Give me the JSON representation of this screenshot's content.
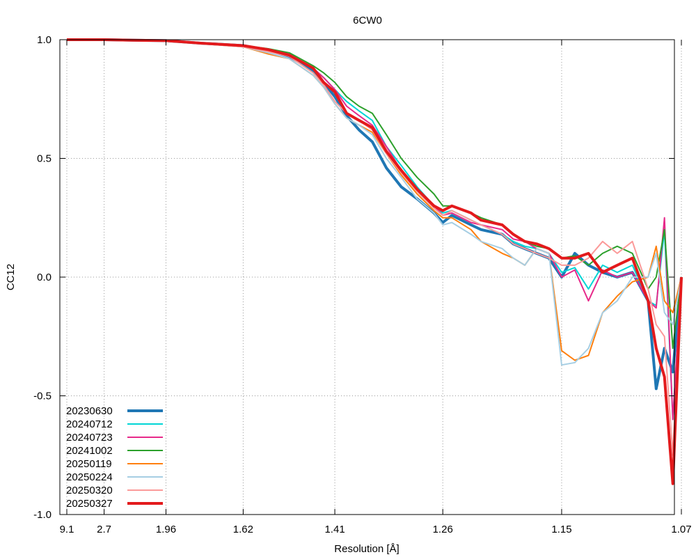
{
  "chart_data": {
    "type": "line",
    "title": "6CW0",
    "xlabel": "Resolution [Å]",
    "ylabel": "CC12",
    "ylim": [
      -1.0,
      1.0
    ],
    "grid": true,
    "legend_position": "bottom-left",
    "x_scale": "inverse-cube of resolution (1/d^3)",
    "x_ticks": [
      "9.1",
      "2.7",
      "1.96",
      "1.62",
      "1.41",
      "1.26",
      "1.15",
      "1.07"
    ],
    "y_ticks": [
      "1.0",
      "0.5",
      "0.0",
      "-0.5",
      "-1.0"
    ],
    "x_resolution": [
      9.1,
      3.5,
      2.7,
      2.25,
      1.96,
      1.77,
      1.62,
      1.55,
      1.5,
      1.45,
      1.43,
      1.41,
      1.39,
      1.37,
      1.35,
      1.33,
      1.31,
      1.29,
      1.27,
      1.26,
      1.25,
      1.23,
      1.22,
      1.2,
      1.19,
      1.18,
      1.17,
      1.16,
      1.15,
      1.14,
      1.13,
      1.12,
      1.11,
      1.1,
      1.09,
      1.085,
      1.08,
      1.075,
      1.07
    ],
    "series": [
      {
        "name": "20230630",
        "color": "#1f77b4",
        "width": 4,
        "values": [
          1.0,
          1.0,
          1.0,
          0.998,
          0.996,
          0.985,
          0.975,
          0.955,
          0.93,
          0.87,
          0.82,
          0.76,
          0.68,
          0.62,
          0.57,
          0.46,
          0.38,
          0.33,
          0.27,
          0.23,
          0.26,
          0.22,
          0.2,
          0.18,
          0.14,
          0.12,
          0.1,
          0.08,
          0.0,
          0.1,
          0.05,
          0.02,
          0.0,
          0.02,
          -0.1,
          -0.47,
          -0.3,
          -0.4,
          0.0
        ]
      },
      {
        "name": "20240712",
        "color": "#00d5d5",
        "width": 2,
        "values": [
          1.0,
          1.0,
          1.0,
          0.998,
          0.996,
          0.985,
          0.975,
          0.96,
          0.94,
          0.88,
          0.84,
          0.79,
          0.74,
          0.7,
          0.66,
          0.55,
          0.47,
          0.38,
          0.3,
          0.27,
          0.28,
          0.24,
          0.22,
          0.18,
          0.15,
          0.13,
          0.12,
          0.1,
          0.02,
          0.04,
          -0.05,
          0.05,
          0.02,
          0.05,
          -0.1,
          -0.12,
          0.2,
          -0.6,
          0.0
        ]
      },
      {
        "name": "20240723",
        "color": "#e7298a",
        "width": 2,
        "values": [
          1.0,
          1.0,
          1.0,
          0.998,
          0.996,
          0.985,
          0.975,
          0.96,
          0.94,
          0.88,
          0.84,
          0.79,
          0.72,
          0.68,
          0.64,
          0.55,
          0.45,
          0.37,
          0.3,
          0.26,
          0.27,
          0.23,
          0.22,
          0.2,
          0.16,
          0.15,
          0.12,
          0.1,
          0.0,
          0.03,
          -0.1,
          0.03,
          0.0,
          0.02,
          -0.1,
          -0.13,
          0.25,
          -0.6,
          0.0
        ]
      },
      {
        "name": "20241002",
        "color": "#2ca02c",
        "width": 2,
        "values": [
          1.0,
          1.0,
          1.0,
          0.998,
          0.996,
          0.985,
          0.975,
          0.962,
          0.945,
          0.89,
          0.86,
          0.82,
          0.76,
          0.72,
          0.69,
          0.6,
          0.5,
          0.42,
          0.35,
          0.3,
          0.3,
          0.27,
          0.25,
          0.22,
          0.18,
          0.15,
          0.13,
          0.12,
          0.08,
          0.09,
          0.05,
          0.1,
          0.13,
          0.1,
          -0.05,
          0.0,
          0.2,
          -0.3,
          0.0
        ]
      },
      {
        "name": "20250119",
        "color": "#ff7f0e",
        "width": 2,
        "values": [
          1.0,
          1.0,
          1.0,
          0.998,
          0.995,
          0.983,
          0.97,
          0.94,
          0.92,
          0.85,
          0.8,
          0.73,
          0.67,
          0.64,
          0.61,
          0.52,
          0.43,
          0.35,
          0.28,
          0.25,
          0.25,
          0.2,
          0.15,
          0.1,
          0.08,
          0.05,
          0.12,
          0.1,
          -0.31,
          -0.35,
          -0.33,
          -0.15,
          -0.08,
          -0.02,
          0.0,
          0.13,
          -0.1,
          -0.15,
          0.0
        ]
      },
      {
        "name": "20250224",
        "color": "#a6cee3",
        "width": 2,
        "values": [
          1.0,
          1.0,
          1.0,
          0.998,
          0.995,
          0.983,
          0.97,
          0.945,
          0.92,
          0.85,
          0.8,
          0.73,
          0.67,
          0.64,
          0.6,
          0.5,
          0.42,
          0.33,
          0.27,
          0.22,
          0.23,
          0.18,
          0.15,
          0.12,
          0.08,
          0.05,
          0.12,
          0.1,
          -0.37,
          -0.36,
          -0.3,
          -0.15,
          -0.1,
          0.0,
          0.0,
          0.1,
          -0.15,
          -0.2,
          0.0
        ]
      },
      {
        "name": "20250320",
        "color": "#fb9a99",
        "width": 2,
        "values": [
          1.0,
          1.0,
          1.0,
          0.998,
          0.995,
          0.983,
          0.97,
          0.95,
          0.93,
          0.86,
          0.81,
          0.74,
          0.69,
          0.66,
          0.62,
          0.52,
          0.44,
          0.36,
          0.29,
          0.26,
          0.28,
          0.24,
          0.22,
          0.18,
          0.14,
          0.12,
          0.1,
          0.08,
          0.05,
          0.05,
          0.08,
          0.15,
          0.1,
          0.15,
          -0.05,
          -0.2,
          -0.25,
          -0.75,
          0.0
        ]
      },
      {
        "name": "20250327",
        "color": "#e31a1c",
        "width": 4,
        "values": [
          1.0,
          1.0,
          1.0,
          0.998,
          0.996,
          0.985,
          0.975,
          0.958,
          0.935,
          0.88,
          0.82,
          0.78,
          0.69,
          0.66,
          0.63,
          0.53,
          0.45,
          0.37,
          0.3,
          0.28,
          0.3,
          0.27,
          0.24,
          0.22,
          0.18,
          0.15,
          0.14,
          0.12,
          0.08,
          0.08,
          0.1,
          0.02,
          0.05,
          0.08,
          -0.1,
          -0.3,
          -0.42,
          -0.87,
          0.0
        ]
      }
    ]
  }
}
